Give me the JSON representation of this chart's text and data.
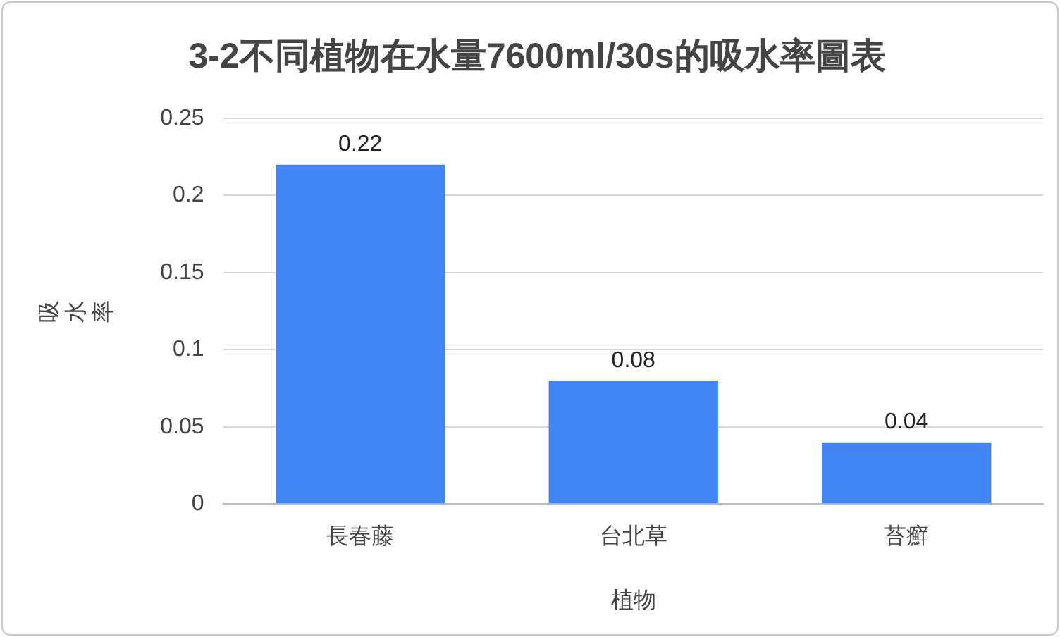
{
  "chart_data": {
    "type": "bar",
    "title": "3-2不同植物在水量7600ml/30s的吸水率圖表",
    "xlabel": "植物",
    "ylabel": "吸水率",
    "categories": [
      "長春藤",
      "台北草",
      "苔癬"
    ],
    "values": [
      0.22,
      0.08,
      0.04
    ],
    "color": "#4285f4",
    "ylim": [
      0,
      0.25
    ],
    "yticks": [
      0,
      0.05,
      0.1,
      0.15,
      0.2,
      0.25
    ],
    "grid": "y",
    "legend": false,
    "data_labels": true
  }
}
